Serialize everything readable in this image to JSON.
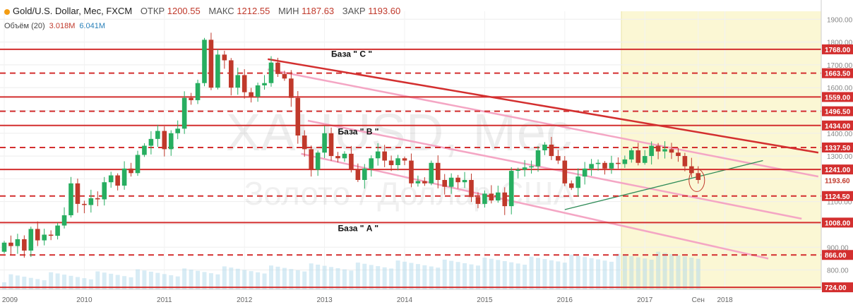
{
  "header": {
    "symbol": "Gold/U.S. Dollar, Мес, FXCM",
    "open_label": "ОТКР",
    "open": "1200.55",
    "high_label": "МАКС",
    "high": "1212.55",
    "low_label": "МИН",
    "low": "1187.63",
    "close_label": "ЗАКР",
    "close": "1193.60",
    "volume_label": "Объём (20)",
    "volume_1": "3.018M",
    "volume_2": "6.041M"
  },
  "watermark": {
    "line1": "XAUUSD, Мес",
    "line2": "Золото / Доллар США"
  },
  "colors": {
    "up": "#27ae60",
    "down": "#c0392b",
    "level": "#d32f2f",
    "channel": "#f4a6c4",
    "trend_down": "#d32f2f",
    "trend_up": "#2e8b57",
    "forecast_zone": "#fbf7d4",
    "volume": "#a9d4e8"
  },
  "chart_data": {
    "type": "candlestick",
    "x_axis_labels": [
      "2009",
      "2010",
      "2011",
      "2012",
      "2013",
      "2014",
      "2015",
      "2016",
      "2017",
      "2018",
      "Сен"
    ],
    "y_axis_ticks": [
      "1900.00",
      "1800.00",
      "1700.00",
      "1600.00",
      "1500.00",
      "1400.00",
      "1300.00",
      "1200.00",
      "1100.00",
      "1000.00",
      "900.00",
      "800.00"
    ],
    "levels": [
      {
        "value": 1768.0,
        "label": "1768.00",
        "style": "solid"
      },
      {
        "value": 1663.5,
        "label": "1663.50",
        "style": "dashed"
      },
      {
        "value": 1559.0,
        "label": "1559.00",
        "style": "solid"
      },
      {
        "value": 1496.5,
        "label": "1496.50",
        "style": "dashed"
      },
      {
        "value": 1434.0,
        "label": "1434.00",
        "style": "solid"
      },
      {
        "value": 1337.5,
        "label": "1337.50",
        "style": "dashed"
      },
      {
        "value": 1241.0,
        "label": "1241.00",
        "style": "solid"
      },
      {
        "value": 1124.5,
        "label": "1124.50",
        "style": "dashed"
      },
      {
        "value": 1008.0,
        "label": "1008.00",
        "style": "solid"
      },
      {
        "value": 866.0,
        "label": "866.00",
        "style": "dashed"
      },
      {
        "value": 724.0,
        "label": "724.00",
        "style": "solid"
      }
    ],
    "current_price": {
      "value": 1193.6,
      "label": "1193.60"
    },
    "annotations": [
      {
        "text": "База  \" C \"",
        "value": 1735,
        "month": 49
      },
      {
        "text": "База  \" B \"",
        "value": 1395,
        "month": 50
      },
      {
        "text": "База  \" A \"",
        "value": 970,
        "month": 50
      }
    ],
    "closes": [
      920,
      905,
      935,
      885,
      980,
      930,
      955,
      950,
      995,
      1040,
      1180,
      1090,
      1085,
      1115,
      1110,
      1185,
      1215,
      1170,
      1245,
      1225,
      1305,
      1345,
      1375,
      1410,
      1330,
      1400,
      1420,
      1555,
      1545,
      1620,
      1810,
      1600,
      1745,
      1720,
      1600,
      1655,
      1580,
      1560,
      1610,
      1620,
      1710,
      1660,
      1640,
      1555,
      1390,
      1330,
      1240,
      1315,
      1400,
      1300,
      1290,
      1310,
      1240,
      1195,
      1245,
      1290,
      1320,
      1280,
      1260,
      1290,
      1280,
      1180,
      1190,
      1180,
      1270,
      1195,
      1165,
      1205,
      1185,
      1195,
      1120,
      1090,
      1135,
      1105,
      1140,
      1080,
      1235,
      1240,
      1250,
      1255,
      1325,
      1350,
      1300,
      1280,
      1180,
      1160,
      1210,
      1245,
      1265,
      1270,
      1245,
      1270,
      1265,
      1285,
      1325,
      1270,
      1300,
      1345,
      1320,
      1330,
      1315,
      1300,
      1255,
      1225,
      1195
    ],
    "volume_note": "Объём (20)"
  }
}
